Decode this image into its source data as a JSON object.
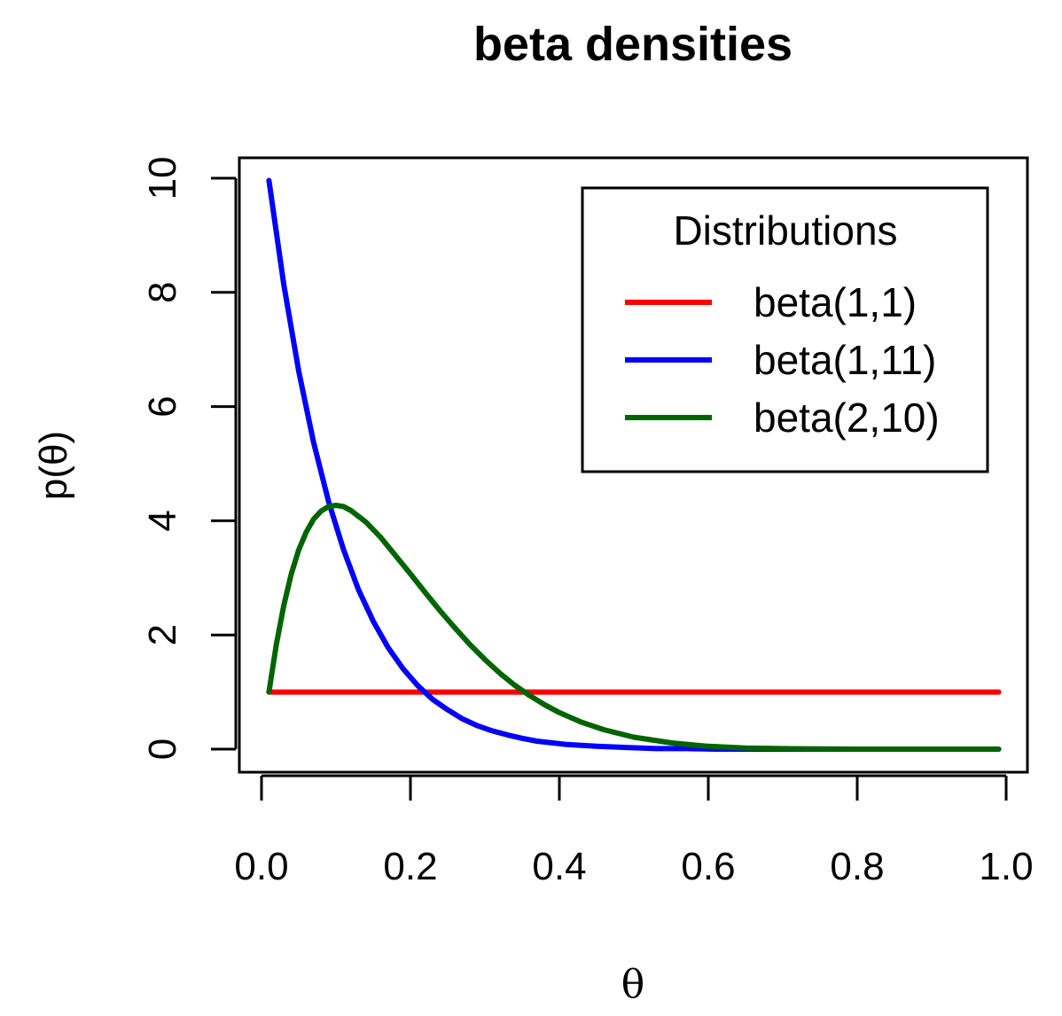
{
  "chart_data": {
    "type": "line",
    "title": "beta densities",
    "xlabel": "θ",
    "ylabel": "p(θ)",
    "xlim": [
      0.0,
      1.0
    ],
    "ylim": [
      0,
      10
    ],
    "x_ticks": [
      0.0,
      0.2,
      0.4,
      0.6,
      0.8,
      1.0
    ],
    "x_tick_labels": [
      "0.0",
      "0.2",
      "0.4",
      "0.6",
      "0.8",
      "1.0"
    ],
    "y_ticks": [
      0,
      2,
      4,
      6,
      8,
      10
    ],
    "y_tick_labels": [
      "0",
      "2",
      "4",
      "6",
      "8",
      "10"
    ],
    "grid": false,
    "legend": {
      "title": "Distributions",
      "position": "top-right",
      "entries": [
        "beta(1,1)",
        "beta(1,11)",
        "beta(2,10)"
      ]
    },
    "series": [
      {
        "name": "beta(1,1)",
        "color": "#ff0000",
        "x": [
          0.01,
          0.1,
          0.2,
          0.3,
          0.4,
          0.5,
          0.6,
          0.7,
          0.8,
          0.9,
          0.99
        ],
        "y": [
          1,
          1,
          1,
          1,
          1,
          1,
          1,
          1,
          1,
          1,
          1
        ]
      },
      {
        "name": "beta(1,11)",
        "color": "#0000ff",
        "x": [
          0.01,
          0.03,
          0.05,
          0.07,
          0.09,
          0.11,
          0.13,
          0.15,
          0.17,
          0.19,
          0.21,
          0.23,
          0.25,
          0.27,
          0.29,
          0.31,
          0.33,
          0.35,
          0.37,
          0.39,
          0.41,
          0.45,
          0.49,
          0.53,
          0.57,
          0.61,
          0.65,
          0.7,
          0.75,
          0.8,
          0.85,
          0.9,
          0.95,
          0.99
        ],
        "y": [
          9.96,
          8.13,
          6.62,
          5.37,
          4.34,
          3.5,
          2.8,
          2.24,
          1.78,
          1.41,
          1.11,
          0.87,
          0.69,
          0.53,
          0.41,
          0.32,
          0.25,
          0.19,
          0.14,
          0.11,
          0.08,
          0.05,
          0.03,
          0.01,
          0.01,
          0.0,
          0.0,
          0.0,
          0.0,
          0.0,
          0.0,
          0.0,
          0.0,
          0.0
        ]
      },
      {
        "name": "beta(2,10)",
        "color": "#006400",
        "x": [
          0.01,
          0.02,
          0.03,
          0.04,
          0.05,
          0.06,
          0.07,
          0.08,
          0.09,
          0.1,
          0.11,
          0.12,
          0.14,
          0.16,
          0.18,
          0.2,
          0.22,
          0.24,
          0.26,
          0.28,
          0.3,
          0.32,
          0.34,
          0.36,
          0.38,
          0.4,
          0.43,
          0.46,
          0.5,
          0.55,
          0.6,
          0.65,
          0.7,
          0.8,
          0.9,
          0.99
        ],
        "y": [
          1.0,
          1.84,
          2.52,
          3.07,
          3.49,
          3.8,
          4.03,
          4.17,
          4.25,
          4.27,
          4.25,
          4.18,
          3.98,
          3.71,
          3.39,
          3.07,
          2.74,
          2.42,
          2.12,
          1.83,
          1.57,
          1.33,
          1.12,
          0.94,
          0.78,
          0.64,
          0.47,
          0.34,
          0.21,
          0.11,
          0.05,
          0.02,
          0.01,
          0.0,
          0.0,
          0.0
        ]
      }
    ]
  }
}
